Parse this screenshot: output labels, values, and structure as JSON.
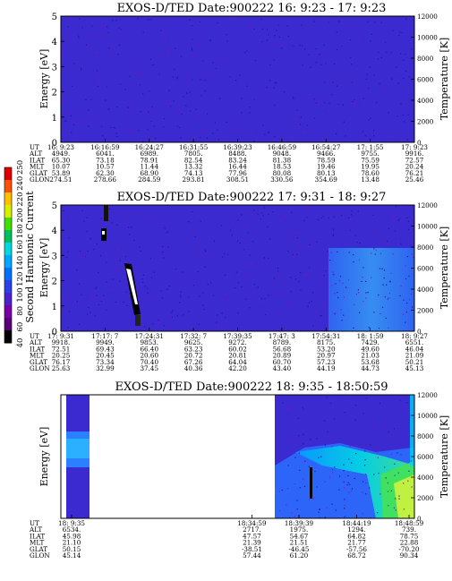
{
  "chart_data": [
    {
      "type": "heatmap",
      "title": "EXOS-D/TED   Date:900222  16: 9:23 - 17: 9:23",
      "ylabel": "Energy [eV]",
      "y2label": "Temperature [K]",
      "ylim": [
        0,
        5
      ],
      "y2lim": [
        0,
        12000
      ],
      "yticks": [
        "0",
        "1",
        "2",
        "3",
        "4",
        "5"
      ],
      "y2ticks": [
        "0",
        "2000",
        "4000",
        "6000",
        "8000",
        "10000",
        "12000"
      ],
      "row_labels": [
        "UT",
        "ALT",
        "ILAT",
        "MLT",
        "GLAT",
        "GLON"
      ],
      "columns": [
        [
          "16: 9:23",
          "4949.",
          "65.30",
          "10.07",
          "53.89",
          "274.51"
        ],
        [
          "16:16:59",
          "6041.",
          "73.18",
          "10.57",
          "62.30",
          "278.66"
        ],
        [
          "16:24:27",
          "6989.",
          "78.91",
          "11.44",
          "68.90",
          "284.59"
        ],
        [
          "16:31:55",
          "7805.",
          "82.54",
          "13.32",
          "74.13",
          "293.81"
        ],
        [
          "16:39:23",
          "8488.",
          "83.24",
          "16.44",
          "77.96",
          "308.51"
        ],
        [
          "16:46:59",
          "9048.",
          "81.38",
          "18.53",
          "80.08",
          "330.56"
        ],
        [
          "16:54:27",
          "9466.",
          "78.59",
          "19.46",
          "80.13",
          "354.69"
        ],
        [
          "17: 1:55",
          "9755.",
          "75.59",
          "19.95",
          "78.60",
          "13.48"
        ],
        [
          "17: 9:23",
          "9916.",
          "72.57",
          "20.24",
          "76.21",
          "25.46"
        ]
      ],
      "data_coverage": [
        0,
        1
      ]
    },
    {
      "type": "heatmap",
      "title": "EXOS-D/TED   Date:900222  17: 9:31 - 18: 9:27",
      "ylabel": "Energy [eV]",
      "y2label": "Temperature [K]",
      "ylim": [
        0,
        5
      ],
      "y2lim": [
        0,
        12000
      ],
      "yticks": [
        "0",
        "1",
        "2",
        "3",
        "4",
        "5"
      ],
      "y2ticks": [
        "0",
        "2000",
        "4000",
        "6000",
        "8000",
        "10000",
        "12000"
      ],
      "row_labels": [
        "UT",
        "ALT",
        "ILAT",
        "MLT",
        "GLAT",
        "GLON"
      ],
      "columns": [
        [
          "17: 9:31",
          "9918.",
          "72.51",
          "20.25",
          "76.17",
          "25.63"
        ],
        [
          "17:17: 7",
          "9949.",
          "69.43",
          "20.45",
          "73.34",
          "32.99"
        ],
        [
          "17:24:31",
          "9853.",
          "66.40",
          "20.60",
          "70.40",
          "37.45"
        ],
        [
          "17:32: 7",
          "9625.",
          "63.23",
          "20.72",
          "67.26",
          "40.36"
        ],
        [
          "17:39:35",
          "9272.",
          "60.02",
          "20.81",
          "64.04",
          "42.20"
        ],
        [
          "17:47: 3",
          "8789.",
          "56.68",
          "20.89",
          "60.70",
          "43.40"
        ],
        [
          "17:54:31",
          "8175.",
          "53.20",
          "20.97",
          "57.23",
          "44.19"
        ],
        [
          "18: 1:59",
          "7429.",
          "49.60",
          "21.03",
          "53.68",
          "44.73"
        ],
        [
          "18: 9:27",
          "6551.",
          "46.04",
          "21.09",
          "50.21",
          "45.13"
        ]
      ],
      "data_coverage": [
        0,
        1
      ]
    },
    {
      "type": "heatmap",
      "title": "EXOS-D/TED   Date:900222  18: 9:35 - 18:50:59",
      "ylabel": "Energy [eV]",
      "y2label": "Temperature [K]",
      "ylim": [
        0,
        5
      ],
      "y2lim": [
        0,
        12000
      ],
      "yticks": [
        "0",
        "1",
        "2",
        "3",
        "4",
        "5"
      ],
      "y2ticks": [
        "0",
        "2000",
        "4000",
        "6000",
        "8000",
        "10000",
        "12000"
      ],
      "row_labels": [
        "UT",
        "ALT",
        "ILAT",
        "MLT",
        "GLAT",
        "GLON"
      ],
      "columns_left": [
        [
          "18: 9:35",
          "6534.",
          "45.98",
          "21.10",
          "50.15",
          "45.14"
        ]
      ],
      "columns_right": [
        [
          "18:34:59",
          "2717.",
          "47.57",
          "21.39",
          "-38.51",
          "57.44"
        ],
        [
          "18:39:39",
          "1975.",
          "54.67",
          "21.51",
          "-46.45",
          "61.20"
        ],
        [
          "18:44:19",
          "1294.",
          "64.82",
          "21.77",
          "-57.56",
          "68.72"
        ],
        [
          "18:48:59",
          "739.",
          "78.75",
          "22.88",
          "-70.20",
          "90.34"
        ]
      ],
      "data_coverage": [
        [
          0,
          0.07
        ],
        [
          0.51,
          1
        ]
      ]
    }
  ],
  "colorbar": {
    "label": "Second Harmonic Current",
    "ticks": [
      "40",
      "60",
      "80",
      "100",
      "120",
      "140",
      "160",
      "180",
      "200",
      "220",
      "240",
      "250"
    ],
    "colors": [
      "#000000",
      "#5a0078",
      "#7a00a8",
      "#4a20d0",
      "#2a40e8",
      "#0070ff",
      "#00a8ff",
      "#00d8e0",
      "#00c060",
      "#40e000",
      "#d8f000",
      "#ffc000",
      "#ff5000",
      "#e00000"
    ]
  }
}
